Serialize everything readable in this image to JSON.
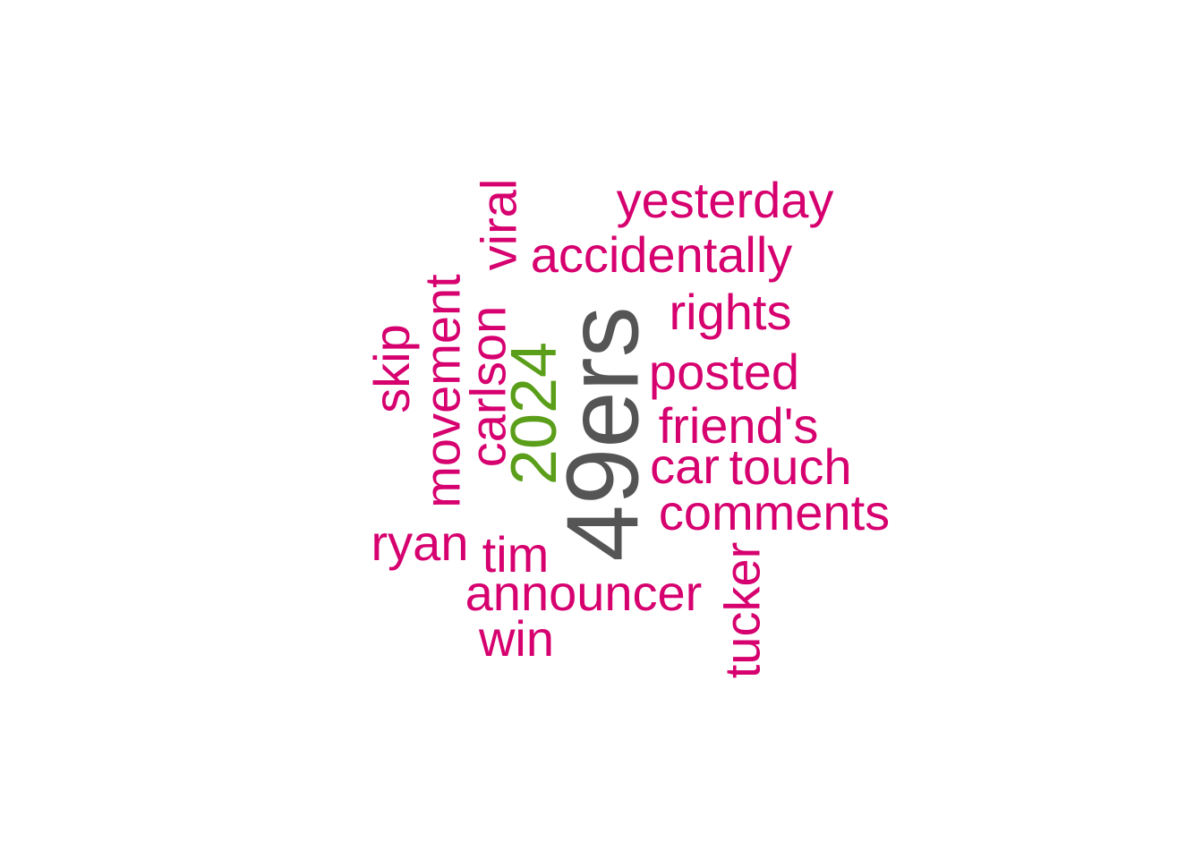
{
  "colors": {
    "background": "#ffffff",
    "primary": "#555555",
    "secondary": "#5a9e1a",
    "tertiary": "#d6006f"
  },
  "words": [
    {
      "text": "49ers",
      "color": "#555555",
      "rotated": true
    },
    {
      "text": "2024",
      "color": "#5a9e1a",
      "rotated": true
    },
    {
      "text": "yesterday",
      "color": "#d6006f",
      "rotated": false
    },
    {
      "text": "accidentally",
      "color": "#d6006f",
      "rotated": false
    },
    {
      "text": "viral",
      "color": "#d6006f",
      "rotated": true
    },
    {
      "text": "movement",
      "color": "#d6006f",
      "rotated": true
    },
    {
      "text": "rights",
      "color": "#d6006f",
      "rotated": false
    },
    {
      "text": "skip",
      "color": "#d6006f",
      "rotated": true
    },
    {
      "text": "carlson",
      "color": "#d6006f",
      "rotated": true
    },
    {
      "text": "posted",
      "color": "#d6006f",
      "rotated": false
    },
    {
      "text": "friend's",
      "color": "#d6006f",
      "rotated": false
    },
    {
      "text": "car",
      "color": "#d6006f",
      "rotated": false
    },
    {
      "text": "touch",
      "color": "#d6006f",
      "rotated": false
    },
    {
      "text": "comments",
      "color": "#d6006f",
      "rotated": false
    },
    {
      "text": "ryan",
      "color": "#d6006f",
      "rotated": false
    },
    {
      "text": "tim",
      "color": "#d6006f",
      "rotated": false
    },
    {
      "text": "announcer",
      "color": "#d6006f",
      "rotated": false
    },
    {
      "text": "tucker",
      "color": "#d6006f",
      "rotated": true
    },
    {
      "text": "win",
      "color": "#d6006f",
      "rotated": false
    }
  ]
}
